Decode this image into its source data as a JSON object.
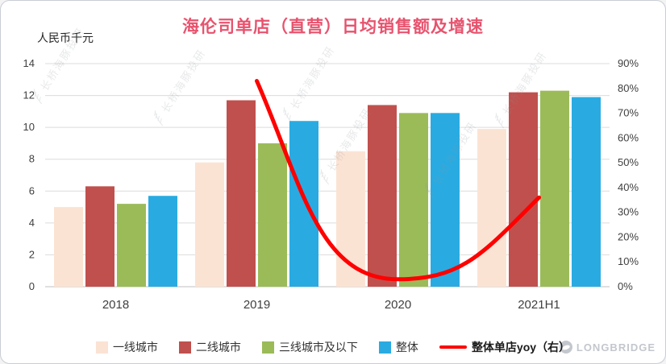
{
  "title": "海伦司单店（直营）日均销售额及增速",
  "unit_label": "人民币千元",
  "watermark_text": "长桥海豚投研",
  "logo_text": "LONGBRIDGE",
  "chart_data": {
    "type": "bar",
    "title": "海伦司单店（直营）日均销售额及增速",
    "ylabel_left": "人民币千元",
    "categories": [
      "2018",
      "2019",
      "2020",
      "2021H1"
    ],
    "series": [
      {
        "key": "tier1",
        "name": "一线城市",
        "color": "#fbe3d4",
        "values": [
          5.0,
          7.8,
          8.5,
          9.9
        ]
      },
      {
        "key": "tier2",
        "name": "二线城市",
        "color": "#c0504d",
        "values": [
          6.3,
          11.7,
          11.4,
          12.2
        ]
      },
      {
        "key": "tier3",
        "name": "三线城市及以下",
        "color": "#9bbb59",
        "values": [
          5.2,
          9.0,
          10.9,
          12.3
        ]
      },
      {
        "key": "overall",
        "name": "整体",
        "color": "#29abe2",
        "values": [
          5.7,
          10.4,
          10.9,
          11.9
        ]
      }
    ],
    "line_series": {
      "key": "yoy",
      "name": "整体单店yoy（右）",
      "color": "#ff0000",
      "axis": "right",
      "values": [
        null,
        83,
        3,
        36
      ]
    },
    "left_axis": {
      "min": 0,
      "max": 14,
      "step": 2,
      "ticks": [
        "0",
        "2",
        "4",
        "6",
        "8",
        "10",
        "12",
        "14"
      ]
    },
    "right_axis": {
      "min": 0,
      "max": 90,
      "step": 10,
      "format": "percent",
      "ticks": [
        "0%",
        "10%",
        "20%",
        "30%",
        "40%",
        "50%",
        "60%",
        "70%",
        "80%",
        "90%"
      ]
    },
    "grid": true,
    "legend_position": "bottom"
  }
}
